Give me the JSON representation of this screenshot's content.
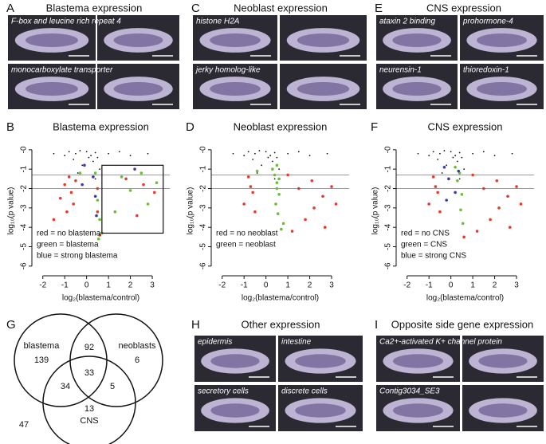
{
  "panels": {
    "A": {
      "letter": "A",
      "title": "Blastema expression",
      "labels": [
        "F-box and leucine rich repeat 4",
        "monocarboxylate transporter"
      ]
    },
    "C": {
      "letter": "C",
      "title": "Neoblast expression",
      "labels": [
        "histone H2A",
        "jerky homolog-like"
      ]
    },
    "E": {
      "letter": "E",
      "title": "CNS expression",
      "labels": [
        "ataxin 2 binding",
        "prohormone-4",
        "neurensin-1",
        "thioredoxin-1"
      ]
    },
    "H": {
      "letter": "H",
      "title": "Other expression",
      "labels": [
        "epidermis",
        "intestine",
        "secretory cells",
        "discrete cells"
      ]
    },
    "I": {
      "letter": "I",
      "title": "Opposite side gene expression",
      "labels": [
        "Ca2+-activated K+ channel protein",
        "Contig3034_SE3"
      ]
    }
  },
  "venn": {
    "letter": "G",
    "sets": [
      "blastema",
      "neoblasts",
      "CNS"
    ],
    "counts": {
      "blastema_only": 139,
      "blastema_neoblasts": 92,
      "neoblasts_only": 6,
      "all": 33,
      "blastema_cns": 34,
      "neoblasts_cns": 5,
      "cns_only": 13,
      "none": 47
    }
  },
  "chart_data": [
    {
      "type": "scatter",
      "letter": "B",
      "title": "Blastema expression",
      "x_label": "log₂(blastema/control)",
      "y_label": "log₁₀(p value)",
      "xlim": [
        -2.5,
        3.8
      ],
      "ylim": [
        -6.5,
        0.2
      ],
      "xticks": [
        -2,
        -1,
        0,
        1,
        2,
        3
      ],
      "yticks": [
        {
          "value": 0,
          "label": "-0"
        },
        -1,
        -2,
        -3,
        -4,
        -5,
        -6
      ],
      "reference_lines": [
        -1.3,
        -2
      ],
      "box": {
        "x": [
          0.7,
          3.5
        ],
        "y": [
          -0.8,
          -4.3
        ]
      },
      "annotations": [
        "red = no blastema",
        "green = blastema",
        "blue = strong blastema"
      ],
      "series": [
        {
          "color": "#111111",
          "x": [
            -0.8,
            -0.5,
            -0.3,
            0,
            0.2,
            0.4,
            -1,
            -0.6,
            0.3,
            0.5,
            -0.2,
            0.6,
            1,
            1.5,
            2,
            -1.5,
            0.4,
            -0.4,
            2.8,
            0.1
          ],
          "y": [
            -0.1,
            -0.2,
            -0.05,
            -0.1,
            -0.3,
            -0.15,
            -0.3,
            -0.5,
            -0.6,
            -0.4,
            -0.8,
            -1,
            -0.2,
            -0.1,
            -0.3,
            -0.2,
            -1.5,
            -1.2,
            -0.2,
            -0.4
          ]
        },
        {
          "color": "#e53a2e",
          "x": [
            -0.8,
            -0.7,
            -1,
            -0.6,
            -0.9,
            -0.5,
            -1.2,
            0.5,
            0.5,
            0.6,
            1.8,
            2.6,
            3.1,
            2.3,
            -1.5
          ],
          "y": [
            -1.4,
            -2.2,
            -1.8,
            -2.8,
            -3.2,
            -1.6,
            -2.5,
            -2,
            -3.2,
            -4.4,
            -1.5,
            -1.8,
            -2.2,
            -3.4,
            -3.6
          ]
        },
        {
          "color": "#6bbd3a",
          "x": [
            0.4,
            0.5,
            0.6,
            0.55,
            1.6,
            2,
            2.5,
            3.2,
            2.8,
            1.3,
            0.7,
            -0.3
          ],
          "y": [
            -1.2,
            -2.6,
            -3.6,
            -4.6,
            -1.4,
            -2.1,
            -1.2,
            -1.7,
            -2.8,
            -3.2,
            -4.3,
            -1.2
          ]
        },
        {
          "color": "#3b3ba8",
          "x": [
            -0.1,
            0.3,
            0.4,
            -0.2,
            2.2,
            0.45
          ],
          "y": [
            -0.8,
            -1.4,
            -2.4,
            -1.8,
            -1,
            -3.4
          ]
        }
      ]
    },
    {
      "type": "scatter",
      "letter": "D",
      "title": "Neoblast expression",
      "x_label": "log₂(blastema/control)",
      "y_label": "log₁₀(p value)",
      "xlim": [
        -2.5,
        3.8
      ],
      "ylim": [
        -6.5,
        0.2
      ],
      "xticks": [
        -2,
        -1,
        0,
        1,
        2,
        3
      ],
      "yticks": [
        {
          "value": 0,
          "label": "-0"
        },
        -1,
        -2,
        -3,
        -4,
        -5,
        -6
      ],
      "reference_lines": [
        -1.3,
        -2
      ],
      "annotations": [
        "red = no neoblast",
        "green = neoblast"
      ],
      "series": [
        {
          "color": "#111111",
          "x": [
            -0.8,
            -0.5,
            -0.3,
            0,
            0.2,
            0.4,
            -1,
            -0.6,
            0.3,
            0.5,
            -0.2,
            0.6,
            1,
            1.5,
            2,
            -1.5,
            0.4,
            -0.4,
            2.8,
            0.1
          ],
          "y": [
            -0.1,
            -0.2,
            -0.05,
            -0.1,
            -0.3,
            -0.15,
            -0.3,
            -0.5,
            -0.6,
            -0.4,
            -0.8,
            -1,
            -0.2,
            -0.1,
            -0.3,
            -0.2,
            -1.5,
            -1.2,
            -0.2,
            -0.4
          ]
        },
        {
          "color": "#e53a2e",
          "x": [
            -0.8,
            -0.6,
            -1,
            -0.5,
            1,
            1.5,
            2.1,
            2.6,
            3,
            2.2,
            1.8,
            3.2,
            1.2,
            2.7,
            -0.7
          ],
          "y": [
            -1.4,
            -2.2,
            -2.8,
            -3.2,
            -1.3,
            -2,
            -1.6,
            -2.4,
            -1.9,
            -3,
            -3.6,
            -2.8,
            -4.2,
            -4,
            -1.9
          ]
        },
        {
          "color": "#6bbd3a",
          "x": [
            0.5,
            0.4,
            0.5,
            0.6,
            0.45,
            0.55,
            0.7,
            0.3,
            -0.4,
            0.8,
            0.6,
            0.5
          ],
          "y": [
            -0.8,
            -1.3,
            -1.7,
            -2.3,
            -2.8,
            -3.3,
            -4.1,
            -1,
            -1.1,
            -3.8,
            -1.5,
            -2
          ]
        }
      ]
    },
    {
      "type": "scatter",
      "letter": "F",
      "title": "CNS expression",
      "x_label": "log₂(blastema/control)",
      "y_label": "log₁₀(p value)",
      "xlim": [
        -2.5,
        3.8
      ],
      "ylim": [
        -6.5,
        0.2
      ],
      "xticks": [
        -2,
        -1,
        0,
        1,
        2,
        3
      ],
      "yticks": [
        {
          "value": 0,
          "label": "-0"
        },
        -1,
        -2,
        -3,
        -4,
        -5,
        -6
      ],
      "reference_lines": [
        -1.3,
        -2
      ],
      "annotations": [
        "red = no CNS",
        "green = CNS",
        "blue = strong CNS"
      ],
      "series": [
        {
          "color": "#111111",
          "x": [
            -0.8,
            -0.5,
            -0.3,
            0,
            0.2,
            0.4,
            -1,
            -0.6,
            0.3,
            0.5,
            -0.2,
            0.6,
            1,
            1.5,
            2,
            -1.5,
            0.4,
            -0.4,
            2.8,
            0.1
          ],
          "y": [
            -0.1,
            -0.2,
            -0.05,
            -0.1,
            -0.3,
            -0.15,
            -0.3,
            -0.5,
            -0.6,
            -0.4,
            -0.8,
            -1,
            -0.2,
            -0.1,
            -0.3,
            -0.2,
            -1.5,
            -1.2,
            -0.2,
            -0.4
          ]
        },
        {
          "color": "#e53a2e",
          "x": [
            -0.8,
            -0.6,
            -1,
            -0.5,
            1,
            1.5,
            2.1,
            2.6,
            3,
            2.2,
            1.8,
            3.2,
            1.2,
            2.7,
            -0.7,
            0.6
          ],
          "y": [
            -1.4,
            -2.2,
            -2.8,
            -3.2,
            -1.3,
            -2,
            -1.6,
            -2.4,
            -1.9,
            -3,
            -3.6,
            -2.8,
            -4.2,
            -4,
            -1.9,
            -4.5
          ]
        },
        {
          "color": "#6bbd3a",
          "x": [
            0.4,
            0.5,
            0.3,
            0.45,
            0.2,
            0.55
          ],
          "y": [
            -1.2,
            -2.3,
            -1.6,
            -3.1,
            -0.9,
            -3.8
          ]
        },
        {
          "color": "#3b3ba8",
          "x": [
            -0.3,
            -0.1,
            0.2,
            -0.2,
            0.35
          ],
          "y": [
            -0.9,
            -1.5,
            -2.2,
            -2.6,
            -1.1
          ]
        }
      ]
    }
  ]
}
